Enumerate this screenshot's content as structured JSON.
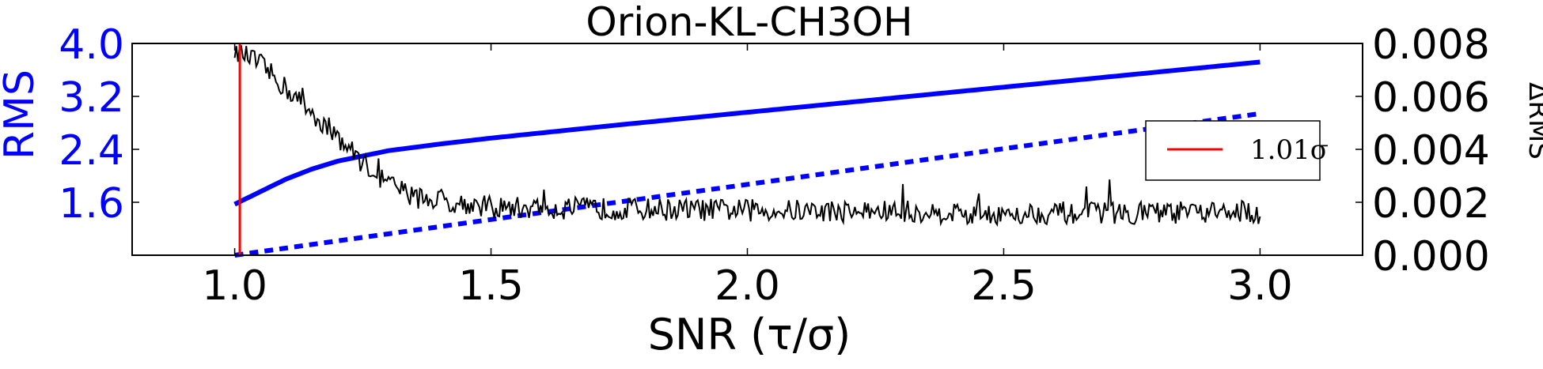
{
  "chart_data": {
    "type": "line",
    "title": "Orion-KL-CH3OH",
    "xlabel": "SNR (τ/σ)",
    "ylabel_left": "RMS",
    "ylabel_right": "ΔRMS",
    "xlim": [
      0.8,
      3.2
    ],
    "ylim_left": [
      0.8,
      4.0
    ],
    "ylim_right": [
      0.0,
      0.008
    ],
    "x_ticks": [
      "1.0",
      "1.5",
      "2.0",
      "2.5",
      "3.0"
    ],
    "x_tick_values": [
      1.0,
      1.5,
      2.0,
      2.5,
      3.0
    ],
    "y_left_ticks": [
      "1.6",
      "2.4",
      "3.2",
      "4.0"
    ],
    "y_left_tick_values": [
      1.6,
      2.4,
      3.2,
      4.0
    ],
    "y_right_ticks": [
      "0.000",
      "0.002",
      "0.004",
      "0.006",
      "0.008"
    ],
    "y_right_tick_values": [
      0.0,
      0.002,
      0.004,
      0.006,
      0.008
    ],
    "grid": false,
    "legend_position": "right",
    "colors": {
      "rms": "#0000ff",
      "delta_rms": "#000000",
      "threshold": "#ff0000",
      "left_axis": "#0000ff",
      "right_axis": "#000000"
    },
    "series": [
      {
        "key": "rms_solid",
        "axis": "left",
        "style": "solid",
        "x": [
          1.0,
          1.05,
          1.1,
          1.15,
          1.2,
          1.3,
          1.4,
          1.5,
          1.75,
          2.0,
          2.25,
          2.5,
          2.75,
          3.0
        ],
        "y": [
          1.57,
          1.76,
          1.95,
          2.1,
          2.22,
          2.38,
          2.48,
          2.57,
          2.77,
          2.96,
          3.15,
          3.34,
          3.53,
          3.72
        ]
      },
      {
        "key": "rms_dotted",
        "axis": "left",
        "style": "dotted",
        "x": [
          1.0,
          1.5,
          2.0,
          2.5,
          3.0
        ],
        "y": [
          0.8,
          1.34,
          1.87,
          2.41,
          2.94
        ]
      },
      {
        "key": "delta_rms",
        "axis": "right",
        "style": "noisy",
        "x": [
          1.0,
          1.05,
          1.1,
          1.15,
          1.2,
          1.25,
          1.3,
          1.35,
          1.4,
          1.5,
          2.0,
          2.5,
          3.0
        ],
        "y": [
          0.0078,
          0.0072,
          0.0063,
          0.0054,
          0.0045,
          0.0035,
          0.0027,
          0.0022,
          0.0021,
          0.0018,
          0.0017,
          0.0016,
          0.0016
        ]
      }
    ],
    "threshold": {
      "x": 1.01,
      "legend_label": "1.01σ"
    }
  }
}
